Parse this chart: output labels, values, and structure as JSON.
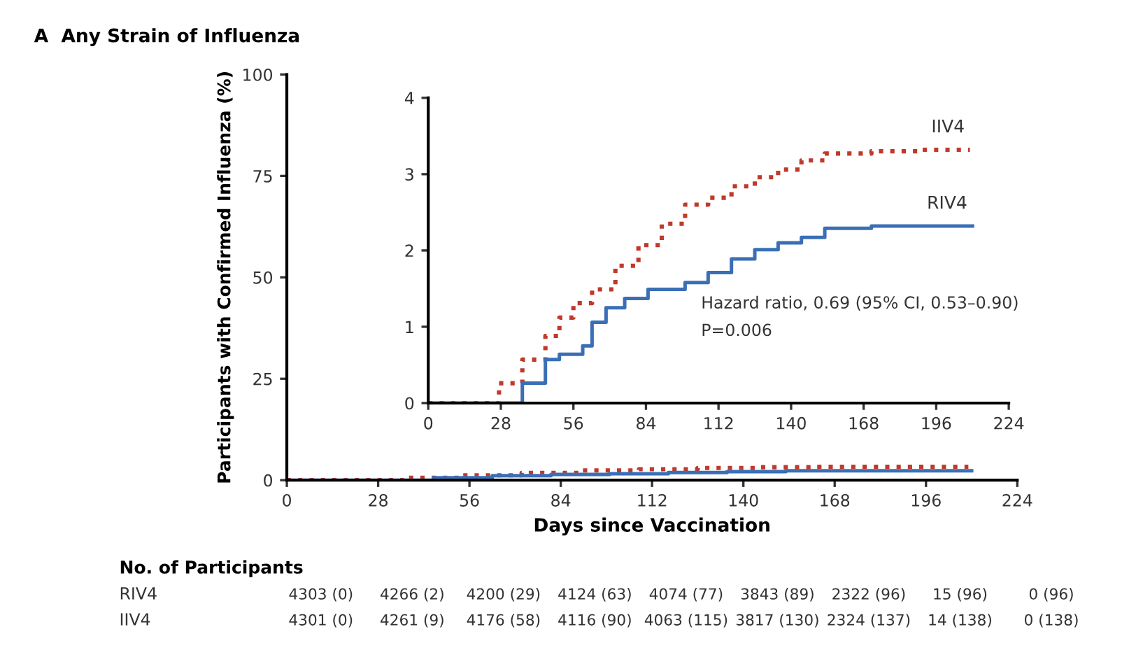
{
  "chart_data": [
    {
      "type": "step",
      "title": "A  Any Strain of Influenza",
      "xlabel": "Days since Vaccination",
      "ylabel": "Participants with Confirmed Influenza (%)",
      "xlim": [
        0,
        224
      ],
      "xticks": [
        0,
        28,
        56,
        84,
        112,
        140,
        168,
        196,
        224
      ],
      "ylim": [
        0,
        100
      ],
      "yticks": [
        0,
        25,
        50,
        75,
        100
      ],
      "grid": false,
      "series": [
        {
          "color": "#c0392b",
          "line_style": "dotted",
          "x": [
            0,
            18,
            36,
            54,
            72,
            90,
            108,
            126,
            144,
            162,
            209
          ],
          "values": [
            0,
            0,
            0.6,
            1.2,
            1.8,
            2.4,
            2.7,
            3.0,
            3.2,
            3.3,
            3.3
          ]
        },
        {
          "color": "#3a6fb5",
          "line_style": "solid",
          "x": [
            0,
            27,
            45,
            63,
            81,
            99,
            117,
            135,
            153,
            210
          ],
          "values": [
            0,
            0,
            0.6,
            1.1,
            1.4,
            1.6,
            1.9,
            2.1,
            2.3,
            2.3
          ]
        }
      ],
      "annotations": [
        "No. of Participants",
        "RIV4",
        "4303 (0)",
        "4266 (2)",
        "4200 (29)",
        "4124 (63)",
        "4074 (77)",
        "3843 (89)",
        "2322 (96)",
        "15 (96)",
        "0 (96)",
        "IIV4",
        "4301 (0)",
        "4261 (9)",
        "4176 (58)",
        "4116 (90)",
        "4063 (115)",
        "3817 (130)",
        "2324 (137)",
        "14 (138)",
        "0 (138)"
      ]
    },
    {
      "type": "step",
      "xlim": [
        0,
        224
      ],
      "xticks": [
        0,
        28,
        56,
        84,
        112,
        140,
        168,
        196,
        224
      ],
      "ylim": [
        0,
        4
      ],
      "yticks": [
        0,
        1,
        2,
        3,
        4
      ],
      "grid": false,
      "legend": false,
      "series": [
        {
          "name": "IIV4",
          "color": "#c0392b",
          "line_style": "dotted",
          "x": [
            0,
            18.3,
            27.3,
            36.3,
            45.2,
            50.6,
            56,
            63.2,
            72.2,
            81.1,
            90.1,
            99.1,
            108,
            117,
            126,
            135,
            144,
            153,
            162,
            171,
            189,
            209
          ],
          "values": [
            0,
            0,
            0.26,
            0.57,
            0.88,
            1.12,
            1.31,
            1.49,
            1.8,
            2.07,
            2.35,
            2.6,
            2.69,
            2.84,
            2.96,
            3.06,
            3.18,
            3.27,
            3.27,
            3.3,
            3.32,
            3.32
          ]
        },
        {
          "name": "RIV4",
          "color": "#3a6fb5",
          "line_style": "solid",
          "x": [
            0,
            27,
            36.3,
            45.2,
            50.6,
            59.6,
            63.2,
            68.6,
            75.8,
            84.8,
            99.1,
            108,
            117,
            126,
            135,
            144,
            153,
            171,
            210
          ],
          "values": [
            0,
            0,
            0.26,
            0.57,
            0.64,
            0.75,
            1.06,
            1.25,
            1.37,
            1.49,
            1.58,
            1.71,
            1.89,
            2.01,
            2.1,
            2.17,
            2.29,
            2.32,
            2.32
          ]
        }
      ],
      "annotations": [
        "Hazard ratio, 0.69 (95% CI, 0.53–0.90)",
        "P=0.006"
      ]
    }
  ]
}
